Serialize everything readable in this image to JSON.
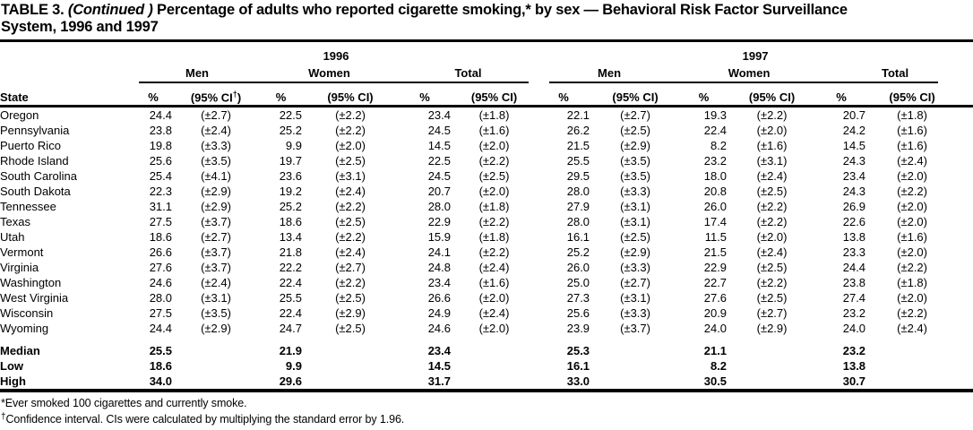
{
  "document": {
    "title": {
      "prefix": "TABLE 3. ",
      "continued": "(Continued )",
      "line1_rest": " Percentage of adults who reported cigarette smoking,* by sex — Behavioral Risk Factor Surveillance",
      "line2": "System, 1996 and 1997"
    }
  },
  "table": {
    "year_groups": [
      "1996",
      "1997"
    ],
    "subgroups": [
      "Men",
      "Women",
      "Total"
    ],
    "state_header": "State",
    "pct_header": "%",
    "ci_header": "(95% CI)",
    "ci_header_first": {
      "open": "(95% CI",
      "dagger": "†",
      "close": ")"
    },
    "rows": [
      {
        "state": "Oregon",
        "values": [
          "24.4",
          "(±2.7)",
          "22.5",
          "(±2.2)",
          "23.4",
          "(±1.8)",
          "22.1",
          "(±2.7)",
          "19.3",
          "(±2.2)",
          "20.7",
          "(±1.8)"
        ]
      },
      {
        "state": "Pennsylvania",
        "values": [
          "23.8",
          "(±2.4)",
          "25.2",
          "(±2.2)",
          "24.5",
          "(±1.6)",
          "26.2",
          "(±2.5)",
          "22.4",
          "(±2.0)",
          "24.2",
          "(±1.6)"
        ]
      },
      {
        "state": "Puerto Rico",
        "values": [
          "19.8",
          "(±3.3)",
          "9.9",
          "(±2.0)",
          "14.5",
          "(±2.0)",
          "21.5",
          "(±2.9)",
          "8.2",
          "(±1.6)",
          "14.5",
          "(±1.6)"
        ]
      },
      {
        "state": "Rhode Island",
        "values": [
          "25.6",
          "(±3.5)",
          "19.7",
          "(±2.5)",
          "22.5",
          "(±2.2)",
          "25.5",
          "(±3.5)",
          "23.2",
          "(±3.1)",
          "24.3",
          "(±2.4)"
        ]
      },
      {
        "state": "South Carolina",
        "values": [
          "25.4",
          "(±4.1)",
          "23.6",
          "(±3.1)",
          "24.5",
          "(±2.5)",
          "29.5",
          "(±3.5)",
          "18.0",
          "(±2.4)",
          "23.4",
          "(±2.0)"
        ]
      },
      {
        "state": "South Dakota",
        "values": [
          "22.3",
          "(±2.9)",
          "19.2",
          "(±2.4)",
          "20.7",
          "(±2.0)",
          "28.0",
          "(±3.3)",
          "20.8",
          "(±2.5)",
          "24.3",
          "(±2.2)"
        ]
      },
      {
        "state": "Tennessee",
        "values": [
          "31.1",
          "(±2.9)",
          "25.2",
          "(±2.2)",
          "28.0",
          "(±1.8)",
          "27.9",
          "(±3.1)",
          "26.0",
          "(±2.2)",
          "26.9",
          "(±2.0)"
        ]
      },
      {
        "state": "Texas",
        "values": [
          "27.5",
          "(±3.7)",
          "18.6",
          "(±2.5)",
          "22.9",
          "(±2.2)",
          "28.0",
          "(±3.1)",
          "17.4",
          "(±2.2)",
          "22.6",
          "(±2.0)"
        ]
      },
      {
        "state": "Utah",
        "values": [
          "18.6",
          "(±2.7)",
          "13.4",
          "(±2.2)",
          "15.9",
          "(±1.8)",
          "16.1",
          "(±2.5)",
          "11.5",
          "(±2.0)",
          "13.8",
          "(±1.6)"
        ]
      },
      {
        "state": "Vermont",
        "values": [
          "26.6",
          "(±3.7)",
          "21.8",
          "(±2.4)",
          "24.1",
          "(±2.2)",
          "25.2",
          "(±2.9)",
          "21.5",
          "(±2.4)",
          "23.3",
          "(±2.0)"
        ]
      },
      {
        "state": "Virginia",
        "values": [
          "27.6",
          "(±3.7)",
          "22.2",
          "(±2.7)",
          "24.8",
          "(±2.4)",
          "26.0",
          "(±3.3)",
          "22.9",
          "(±2.5)",
          "24.4",
          "(±2.2)"
        ]
      },
      {
        "state": "Washington",
        "values": [
          "24.6",
          "(±2.4)",
          "22.4",
          "(±2.2)",
          "23.4",
          "(±1.6)",
          "25.0",
          "(±2.7)",
          "22.7",
          "(±2.2)",
          "23.8",
          "(±1.8)"
        ]
      },
      {
        "state": "West Virginia",
        "values": [
          "28.0",
          "(±3.1)",
          "25.5",
          "(±2.5)",
          "26.6",
          "(±2.0)",
          "27.3",
          "(±3.1)",
          "27.6",
          "(±2.5)",
          "27.4",
          "(±2.0)"
        ]
      },
      {
        "state": "Wisconsin",
        "values": [
          "27.5",
          "(±3.5)",
          "22.4",
          "(±2.9)",
          "24.9",
          "(±2.4)",
          "25.6",
          "(±3.3)",
          "20.9",
          "(±2.7)",
          "23.2",
          "(±2.2)"
        ]
      },
      {
        "state": "Wyoming",
        "values": [
          "24.4",
          "(±2.9)",
          "24.7",
          "(±2.5)",
          "24.6",
          "(±2.0)",
          "23.9",
          "(±3.7)",
          "24.0",
          "(±2.9)",
          "24.0",
          "(±2.4)"
        ]
      }
    ],
    "summary_rows": [
      {
        "label": "Median",
        "values": [
          "25.5",
          "21.9",
          "23.4",
          "25.3",
          "21.1",
          "23.2"
        ]
      },
      {
        "label": "Low",
        "values": [
          "18.6",
          "9.9",
          "14.5",
          "16.1",
          "8.2",
          "13.8"
        ]
      },
      {
        "label": "High",
        "values": [
          "34.0",
          "29.6",
          "31.7",
          "33.0",
          "30.5",
          "30.7"
        ]
      }
    ]
  },
  "footnotes": [
    {
      "marker": "*",
      "text": "Ever smoked 100 cigarettes and currently smoke."
    },
    {
      "marker": "†",
      "text": "Confidence interval. CIs were calculated by multiplying the standard error by 1.96."
    }
  ]
}
